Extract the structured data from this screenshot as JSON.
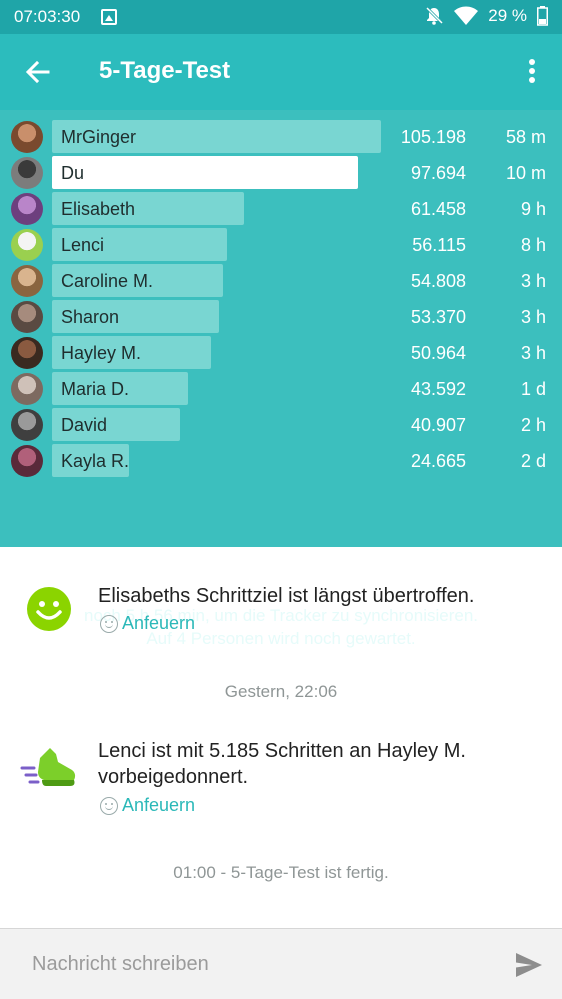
{
  "status_bar": {
    "time": "07:03:30",
    "battery": "29 %"
  },
  "header": {
    "title": "5-Tage-Test"
  },
  "leaderboard": [
    {
      "name": "MrGinger",
      "steps": "105.198",
      "ago": "58 m",
      "progress": 1.0
    },
    {
      "name": "Du",
      "steps": "97.694",
      "ago": "10 m",
      "progress": 0.929,
      "highlight": true
    },
    {
      "name": "Elisabeth",
      "steps": "61.458",
      "ago": "9 h",
      "progress": 0.584
    },
    {
      "name": "Lenci",
      "steps": "56.115",
      "ago": "8 h",
      "progress": 0.533
    },
    {
      "name": "Caroline M.",
      "steps": "54.808",
      "ago": "3 h",
      "progress": 0.521
    },
    {
      "name": "Sharon",
      "steps": "53.370",
      "ago": "3 h",
      "progress": 0.507
    },
    {
      "name": "Hayley M.",
      "steps": "50.964",
      "ago": "3 h",
      "progress": 0.484
    },
    {
      "name": "Maria D.",
      "steps": "43.592",
      "ago": "1 d",
      "progress": 0.414
    },
    {
      "name": "David",
      "steps": "40.907",
      "ago": "2 h",
      "progress": 0.389
    },
    {
      "name": "Kayla R.",
      "steps": "24.665",
      "ago": "2 d",
      "progress": 0.234
    }
  ],
  "sync_note": {
    "line1": "noch 5 h 56 min, um die Tracker zu synchronisieren.",
    "line2": "Auf 4 Personen wird noch gewartet."
  },
  "feed": {
    "item1": {
      "text": "Elisabeths Schrittziel ist längst übertroffen.",
      "cheer": "Anfeuern"
    },
    "separator1": "Gestern, 22:06",
    "item2": {
      "text": "Lenci ist mit 5.185 Schritten an Hayley M. vorbeigedonnert.",
      "cheer": "Anfeuern"
    },
    "separator2": "01:00 - 5-Tage-Test ist fertig."
  },
  "composer": {
    "placeholder": "Nachricht schreiben"
  },
  "colors": {
    "header": "#2cbcbd",
    "board": "#3cbfbe",
    "bar": "#79d6d2",
    "accent": "#2bb8b8",
    "smiley": "#8bd400"
  },
  "icons": {
    "back": "arrow-left-icon",
    "more": "more-vertical-icon",
    "goal": "smiley-icon",
    "pass": "running-shoe-icon",
    "send": "send-icon"
  }
}
